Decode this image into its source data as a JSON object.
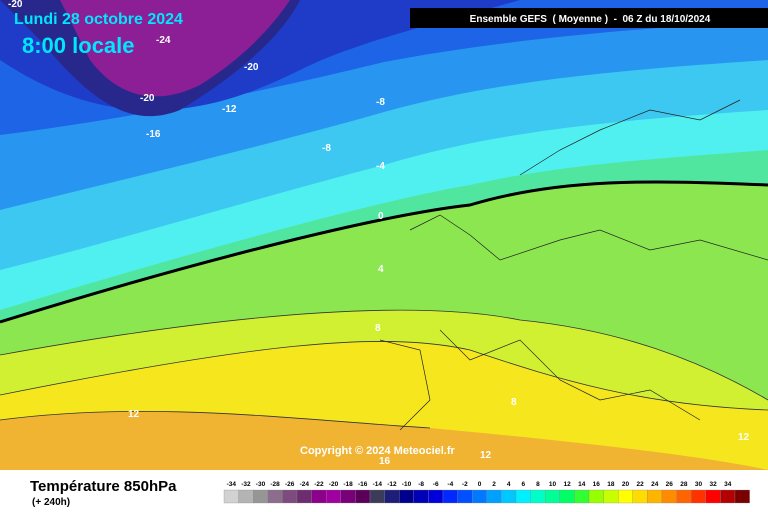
{
  "header": {
    "date": "Lundi 28 octobre 2024",
    "time": "8:00 locale",
    "model": "Ensemble GEFS  ( Moyenne )  -  06 Z du 18/10/2024"
  },
  "contour_labels": [
    "-20",
    "-24",
    "-20",
    "-20",
    "-12",
    "-8",
    "-16",
    "-8",
    "-4",
    "0",
    "4",
    "8",
    "8",
    "12",
    "12",
    "16",
    "12"
  ],
  "copyright": "Copyright © 2024 Meteociel.fr",
  "footer": {
    "title": "Température 850hPa",
    "subtitle": "(+ 240h)"
  },
  "scale": {
    "labels": [
      -34,
      -32,
      -30,
      -28,
      -26,
      -24,
      -22,
      -20,
      -18,
      -16,
      -14,
      -12,
      -10,
      -8,
      -6,
      -4,
      -2,
      0,
      2,
      4,
      6,
      8,
      10,
      12,
      14,
      16,
      18,
      20,
      22,
      24,
      26,
      28,
      30,
      32,
      34
    ],
    "colors": [
      "#d2d2d2",
      "#b4b4b4",
      "#969696",
      "#8c6e8c",
      "#7d4b7d",
      "#6e2d6e",
      "#8c008c",
      "#a000a0",
      "#780078",
      "#5a005a",
      "#3c3c5a",
      "#1e1e78",
      "#00008c",
      "#0000b4",
      "#0000dc",
      "#0028ff",
      "#0050ff",
      "#0078ff",
      "#00a0ff",
      "#00c8ff",
      "#00f0ff",
      "#00ffc8",
      "#00ff96",
      "#00ff64",
      "#32ff32",
      "#96ff00",
      "#c8ff00",
      "#ffff00",
      "#ffdc00",
      "#ffb400",
      "#ff8c00",
      "#ff6400",
      "#ff3200",
      "#ff0000",
      "#b40000",
      "#780000"
    ]
  }
}
